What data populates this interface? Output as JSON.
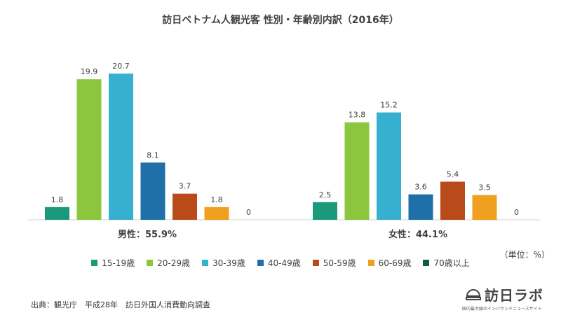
{
  "chart_data": {
    "type": "bar",
    "title": "訪日ベトナム人観光客 性別・年齢別内訳（2016年）",
    "categories": [
      "男性：55.9%",
      "女性：44.1%"
    ],
    "series": [
      {
        "name": "15-19歳",
        "color": "#1a9a7a",
        "values": [
          1.8,
          2.5
        ]
      },
      {
        "name": "20-29歳",
        "color": "#8cc63f",
        "values": [
          19.9,
          13.8
        ]
      },
      {
        "name": "30-39歳",
        "color": "#37b0d0",
        "values": [
          20.7,
          15.2
        ]
      },
      {
        "name": "40-49歳",
        "color": "#1f6fa8",
        "values": [
          8.1,
          3.6
        ]
      },
      {
        "name": "50-59歳",
        "color": "#b94a1a",
        "values": [
          3.7,
          5.4
        ]
      },
      {
        "name": "60-69歳",
        "color": "#f0a01e",
        "values": [
          1.8,
          3.5
        ]
      },
      {
        "name": "70歳以上",
        "color": "#0f5c47",
        "values": [
          0,
          0
        ]
      }
    ],
    "data_labels": [
      [
        "1.8",
        "19.9",
        "20.7",
        "8.1",
        "3.7",
        "1.8",
        "0"
      ],
      [
        "2.5",
        "13.8",
        "15.2",
        "3.6",
        "5.4",
        "3.5",
        "0"
      ]
    ],
    "ylim": [
      0,
      22
    ],
    "grid": false,
    "legend_position": "bottom"
  },
  "unit_label": "（単位：%）",
  "source": "出典：観光庁　平成28年　訪日外国人消費動向調査",
  "brand": {
    "name": "訪日ラボ",
    "tagline": "国内最大級のインバウンドニュースサイト",
    "icon": "dome-logo-icon"
  }
}
